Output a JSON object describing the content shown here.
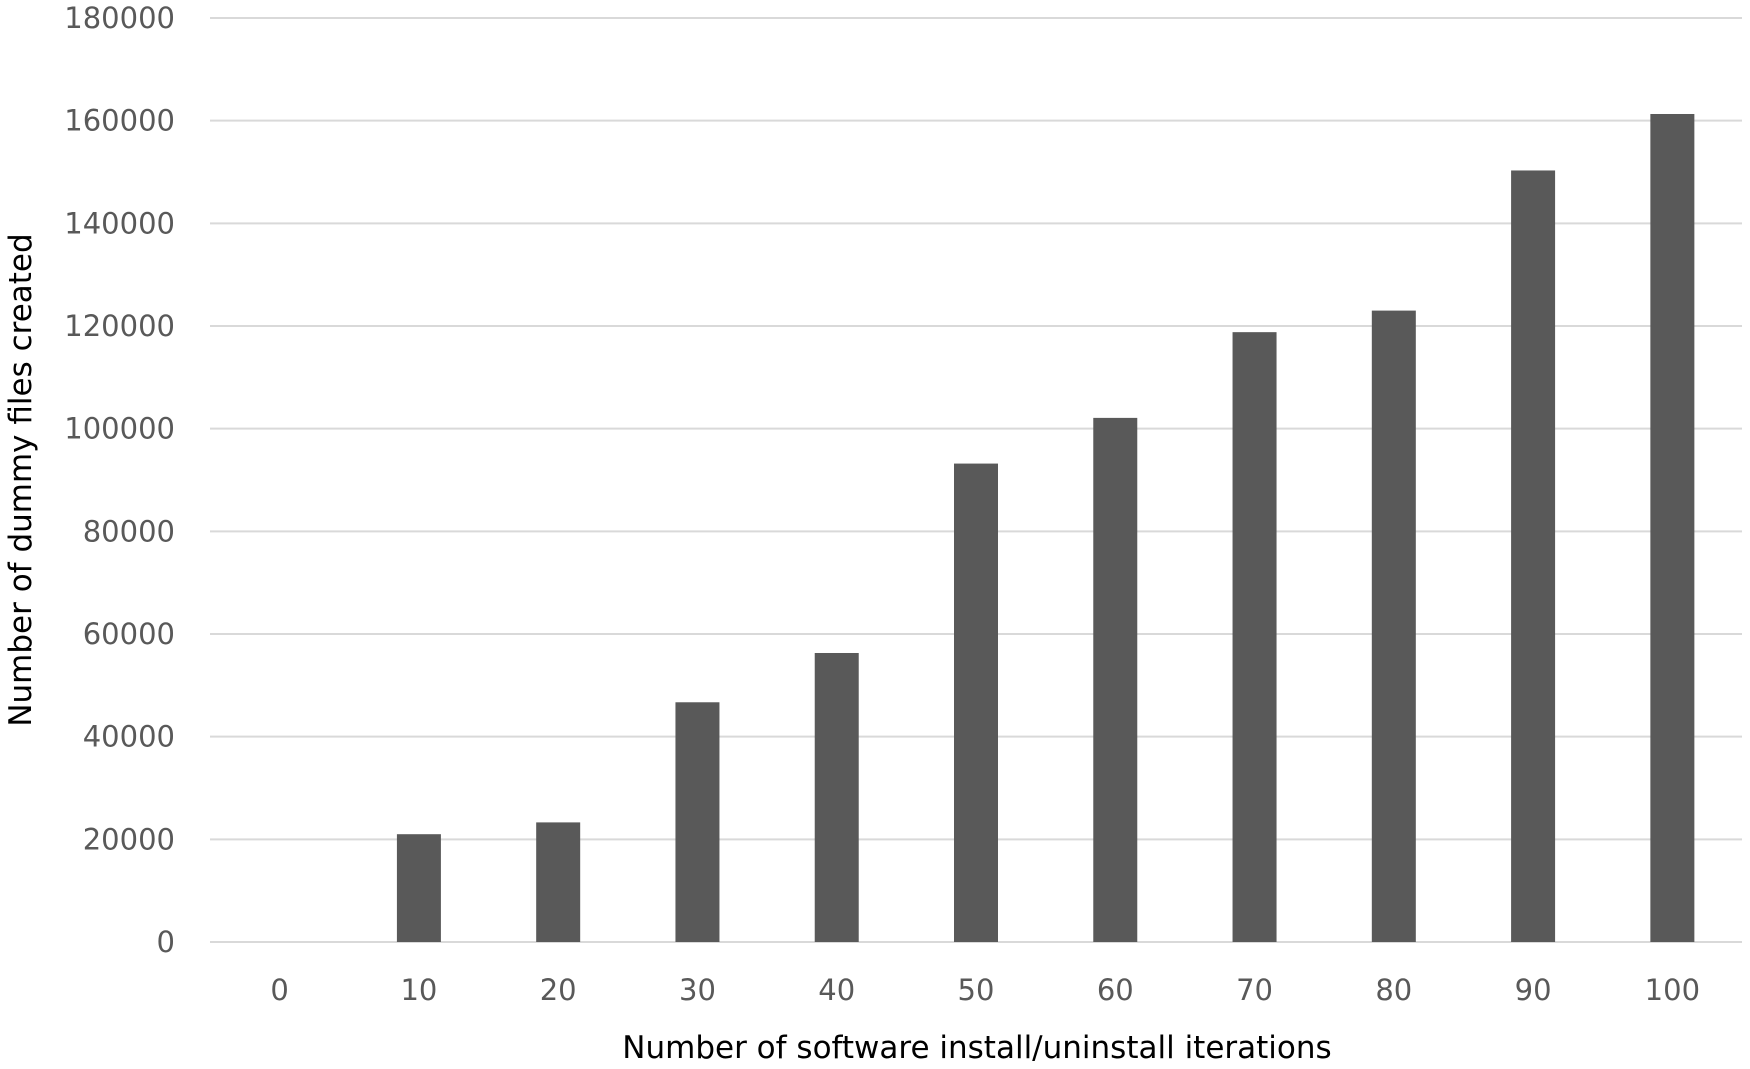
{
  "chart_data": {
    "type": "bar",
    "title": "",
    "xlabel": "Number of software install/uninstall iterations",
    "ylabel": "Number of dummy files created",
    "categories": [
      "0",
      "10",
      "20",
      "30",
      "40",
      "50",
      "60",
      "70",
      "80",
      "90",
      "100"
    ],
    "series": [
      {
        "values": [
          0,
          21000,
          23300,
          46700,
          56300,
          93200,
          102100,
          118800,
          123000,
          150300,
          161300
        ]
      }
    ],
    "ylim": [
      0,
      180000
    ],
    "yticks": [
      0,
      20000,
      40000,
      60000,
      80000,
      100000,
      120000,
      140000,
      160000,
      180000
    ],
    "grid": true,
    "legend": "none",
    "bar_color": "#595959",
    "grid_color": "#d9d9d9"
  }
}
